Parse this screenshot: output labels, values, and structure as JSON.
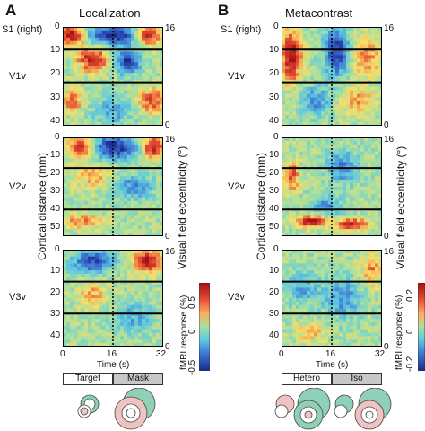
{
  "panels": [
    {
      "letter": "A",
      "title": "Localization",
      "conditions": [
        "Target",
        "Mask"
      ]
    },
    {
      "letter": "B",
      "title": "Metacontrast",
      "conditions": [
        "Hetero",
        "Iso"
      ]
    }
  ],
  "areas": [
    "S1 (right)",
    "V1v",
    "V2v",
    "V3v"
  ],
  "y_ticks": {
    "v1": [
      "0",
      "10",
      "20",
      "30",
      "40"
    ],
    "v2": [
      "0",
      "10",
      "20",
      "30",
      "40",
      "50"
    ],
    "v3": [
      "0",
      "10",
      "20",
      "30",
      "40"
    ]
  },
  "eccentricity_ticks": {
    "v1": [
      "16",
      "0"
    ],
    "v2": [
      "16",
      "0"
    ],
    "v3": [
      "16",
      "0"
    ]
  },
  "x_ticks": [
    "0",
    "16",
    "32"
  ],
  "x_label": "Time (s)",
  "y_label": "Cortical distance (mm)",
  "y2_label": "Visual field eccentricity (°)",
  "colorbars": [
    {
      "label": "fMRI response (%)",
      "ticks": [
        "0.5",
        "0",
        "-0.5"
      ]
    },
    {
      "label": "fMRI response (%)",
      "ticks": [
        "0.2",
        "0",
        "-0.2"
      ]
    }
  ],
  "colors": {
    "red": "#c8281e",
    "blue": "#1e3caa",
    "target_fill": "#ffffff",
    "mask_fill": "#c8c8c8",
    "teal": "#8fd1b8",
    "pink": "#f0c2c2"
  }
}
